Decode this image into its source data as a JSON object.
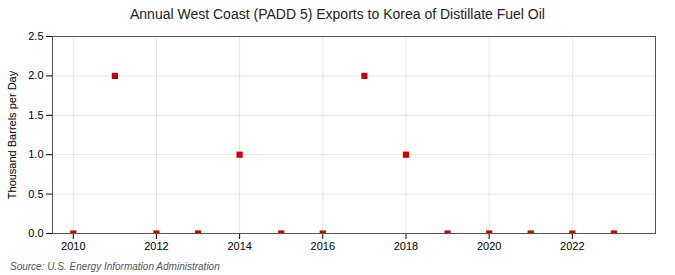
{
  "chart_data": {
    "type": "scatter",
    "title": "Annual West Coast (PADD 5) Exports to Korea of Distillate Fuel Oil",
    "ylabel": "Thousand Barrels per Day",
    "annotations": [
      "Source: U.S. Energy Information Administration"
    ],
    "x": [
      2010,
      2011,
      2012,
      2013,
      2014,
      2015,
      2016,
      2017,
      2018,
      2019,
      2020,
      2021,
      2022,
      2023
    ],
    "values": [
      0.0,
      2.0,
      0.0,
      0.0,
      1.0,
      0.0,
      0.0,
      2.0,
      1.0,
      0.0,
      0.0,
      0.0,
      0.0,
      0.0
    ],
    "color": "#cc0000",
    "marker": "square",
    "xlim": [
      2009.5,
      2024.0
    ],
    "xticks": [
      2010,
      2012,
      2014,
      2016,
      2018,
      2020,
      2022
    ],
    "ylim": [
      0.0,
      2.5
    ],
    "yticks": [
      {
        "value": 0.0,
        "label": "0.0"
      },
      0.5,
      {
        "value": 1.0,
        "label": "1.0"
      },
      1.5,
      {
        "value": 2.0,
        "label": "2.0"
      },
      2.5
    ],
    "grid": true
  }
}
